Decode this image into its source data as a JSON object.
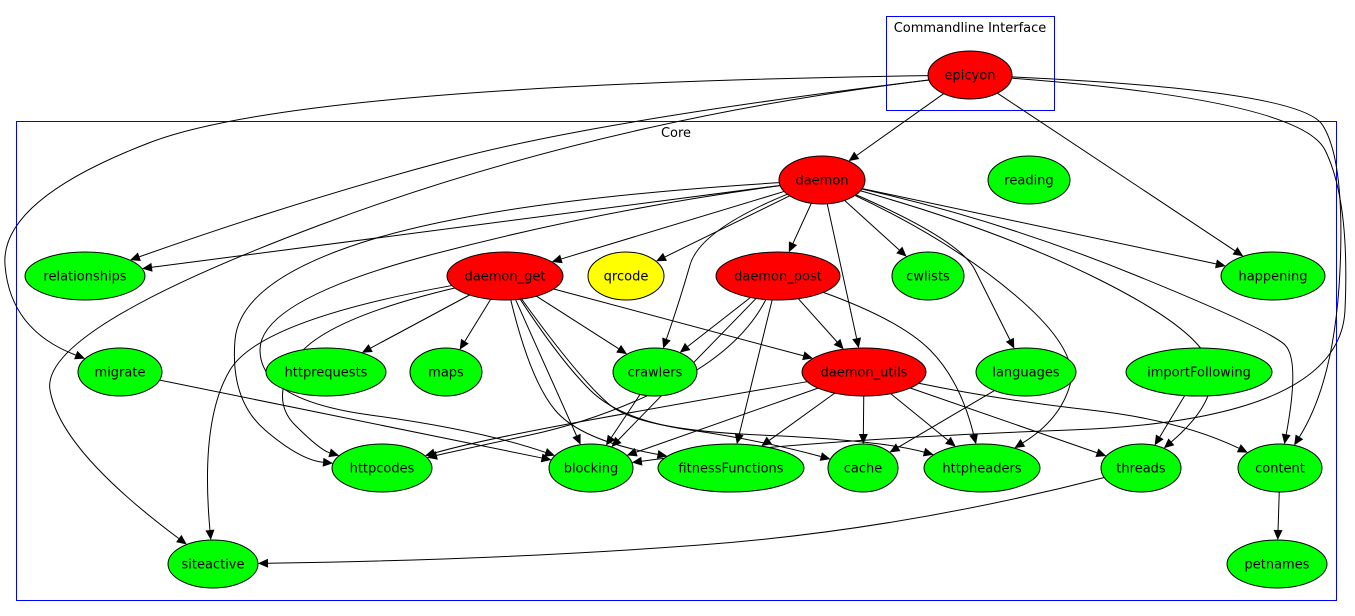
{
  "clusters": [
    {
      "id": "cli",
      "label": "Commandline Interface",
      "border_color": "#0000ff"
    },
    {
      "id": "core",
      "label": "Core",
      "border_color": "#0000ff"
    }
  ],
  "colors": {
    "red": "#ff0000",
    "green": "#00ff00",
    "yellow": "#ffff00",
    "edge": "#000000"
  },
  "nodes": [
    {
      "id": "epicyon",
      "label": "epicyon",
      "fill": "#ff0000"
    },
    {
      "id": "daemon",
      "label": "daemon",
      "fill": "#ff0000"
    },
    {
      "id": "reading",
      "label": "reading",
      "fill": "#00ff00"
    },
    {
      "id": "relationships",
      "label": "relationships",
      "fill": "#00ff00"
    },
    {
      "id": "daemon_get",
      "label": "daemon_get",
      "fill": "#ff0000"
    },
    {
      "id": "qrcode",
      "label": "qrcode",
      "fill": "#ffff00"
    },
    {
      "id": "daemon_post",
      "label": "daemon_post",
      "fill": "#ff0000"
    },
    {
      "id": "cwlists",
      "label": "cwlists",
      "fill": "#00ff00"
    },
    {
      "id": "happening",
      "label": "happening",
      "fill": "#00ff00"
    },
    {
      "id": "migrate",
      "label": "migrate",
      "fill": "#00ff00"
    },
    {
      "id": "httprequests",
      "label": "httprequests",
      "fill": "#00ff00"
    },
    {
      "id": "maps",
      "label": "maps",
      "fill": "#00ff00"
    },
    {
      "id": "crawlers",
      "label": "crawlers",
      "fill": "#00ff00"
    },
    {
      "id": "daemon_utils",
      "label": "daemon_utils",
      "fill": "#ff0000"
    },
    {
      "id": "languages",
      "label": "languages",
      "fill": "#00ff00"
    },
    {
      "id": "importFollowing",
      "label": "importFollowing",
      "fill": "#00ff00"
    },
    {
      "id": "httpcodes",
      "label": "httpcodes",
      "fill": "#00ff00"
    },
    {
      "id": "blocking",
      "label": "blocking",
      "fill": "#00ff00"
    },
    {
      "id": "fitnessFunctions",
      "label": "fitnessFunctions",
      "fill": "#00ff00"
    },
    {
      "id": "cache",
      "label": "cache",
      "fill": "#00ff00"
    },
    {
      "id": "httpheaders",
      "label": "httpheaders",
      "fill": "#00ff00"
    },
    {
      "id": "threads",
      "label": "threads",
      "fill": "#00ff00"
    },
    {
      "id": "content",
      "label": "content",
      "fill": "#00ff00"
    },
    {
      "id": "siteactive",
      "label": "siteactive",
      "fill": "#00ff00"
    },
    {
      "id": "petnames",
      "label": "petnames",
      "fill": "#00ff00"
    }
  ],
  "edges": [
    [
      "epicyon",
      "daemon"
    ],
    [
      "epicyon",
      "relationships"
    ],
    [
      "epicyon",
      "migrate"
    ],
    [
      "epicyon",
      "siteactive"
    ],
    [
      "epicyon",
      "happening"
    ],
    [
      "epicyon",
      "content"
    ],
    [
      "epicyon",
      "blocking"
    ],
    [
      "daemon",
      "relationships"
    ],
    [
      "daemon",
      "daemon_get"
    ],
    [
      "daemon",
      "qrcode"
    ],
    [
      "daemon",
      "daemon_post"
    ],
    [
      "daemon",
      "cwlists"
    ],
    [
      "daemon",
      "happening"
    ],
    [
      "daemon",
      "daemon_utils"
    ],
    [
      "daemon",
      "crawlers"
    ],
    [
      "daemon",
      "languages"
    ],
    [
      "daemon",
      "httpcodes"
    ],
    [
      "daemon",
      "httpheaders"
    ],
    [
      "daemon",
      "threads"
    ],
    [
      "daemon",
      "content"
    ],
    [
      "daemon",
      "blocking"
    ],
    [
      "daemon_get",
      "httprequests"
    ],
    [
      "daemon_get",
      "maps"
    ],
    [
      "daemon_get",
      "crawlers"
    ],
    [
      "daemon_get",
      "daemon_utils"
    ],
    [
      "daemon_get",
      "httpcodes"
    ],
    [
      "daemon_get",
      "blocking"
    ],
    [
      "daemon_get",
      "fitnessFunctions"
    ],
    [
      "daemon_get",
      "cache"
    ],
    [
      "daemon_get",
      "httpheaders"
    ],
    [
      "daemon_get",
      "siteactive"
    ],
    [
      "daemon_post",
      "crawlers"
    ],
    [
      "daemon_post",
      "daemon_utils"
    ],
    [
      "daemon_post",
      "blocking"
    ],
    [
      "daemon_post",
      "fitnessFunctions"
    ],
    [
      "daemon_post",
      "httpheaders"
    ],
    [
      "daemon_post",
      "httpcodes"
    ],
    [
      "daemon_utils",
      "httpcodes"
    ],
    [
      "daemon_utils",
      "blocking"
    ],
    [
      "daemon_utils",
      "fitnessFunctions"
    ],
    [
      "daemon_utils",
      "cache"
    ],
    [
      "daemon_utils",
      "httpheaders"
    ],
    [
      "daemon_utils",
      "threads"
    ],
    [
      "daemon_utils",
      "content"
    ],
    [
      "crawlers",
      "blocking"
    ],
    [
      "migrate",
      "blocking"
    ],
    [
      "languages",
      "cache"
    ],
    [
      "importFollowing",
      "threads"
    ],
    [
      "threads",
      "siteactive"
    ],
    [
      "content",
      "petnames"
    ]
  ]
}
